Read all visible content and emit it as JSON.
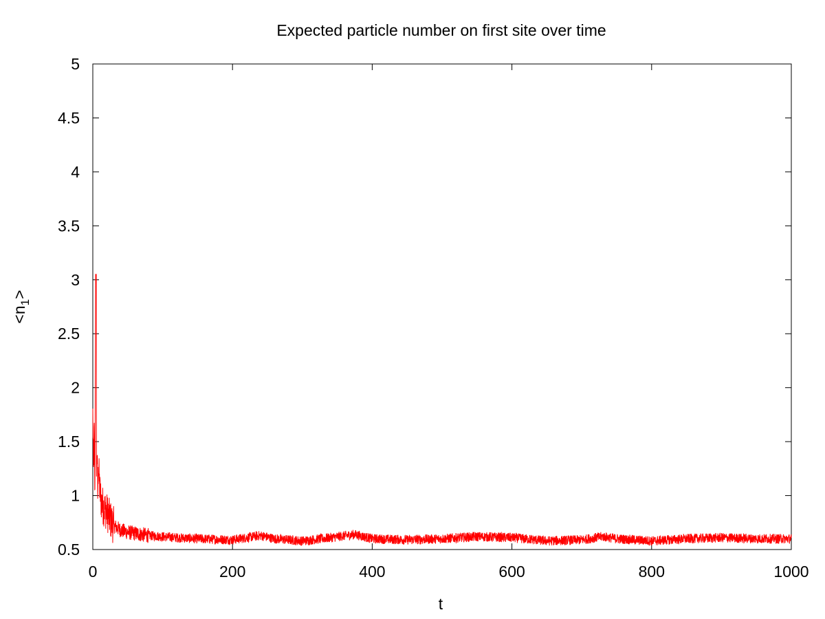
{
  "chart_data": {
    "type": "line",
    "title": "Expected particle number on first site over time",
    "xlabel": "t",
    "ylabel_main": "<n",
    "ylabel_sub": "1",
    "ylabel_end": ">",
    "xlim": [
      0,
      1000
    ],
    "ylim": [
      0.5,
      5
    ],
    "xticks": [
      0,
      200,
      400,
      600,
      800,
      1000
    ],
    "xtick_labels": [
      "0",
      "200",
      "400",
      "600",
      "800",
      "1000"
    ],
    "yticks": [
      0.5,
      1,
      1.5,
      2,
      2.5,
      3,
      3.5,
      4,
      4.5,
      5
    ],
    "ytick_labels": [
      "0.5",
      "1",
      "1.5",
      "2",
      "2.5",
      "3",
      "3.5",
      "4",
      "4.5",
      "5"
    ],
    "grid": false,
    "legend": "none",
    "line_color": "#ff0000",
    "series": [
      {
        "x": [
          0,
          1,
          2,
          3,
          4,
          5,
          6,
          7,
          8,
          10,
          12,
          15,
          20,
          25,
          30,
          40,
          50,
          60,
          80,
          100,
          120,
          150,
          200,
          240,
          260,
          300,
          340,
          375,
          400,
          450,
          500,
          550,
          600,
          650,
          700,
          730,
          750,
          800,
          850,
          900,
          950,
          1000
        ],
        "y": [
          1.75,
          1.2,
          1.6,
          0.95,
          3.05,
          1.1,
          1.45,
          1.0,
          1.3,
          1.05,
          0.95,
          0.9,
          0.85,
          0.78,
          0.72,
          0.68,
          0.66,
          0.65,
          0.63,
          0.62,
          0.61,
          0.6,
          0.59,
          0.63,
          0.6,
          0.58,
          0.61,
          0.64,
          0.6,
          0.59,
          0.6,
          0.62,
          0.61,
          0.58,
          0.59,
          0.62,
          0.6,
          0.58,
          0.6,
          0.61,
          0.6,
          0.6
        ]
      }
    ]
  }
}
